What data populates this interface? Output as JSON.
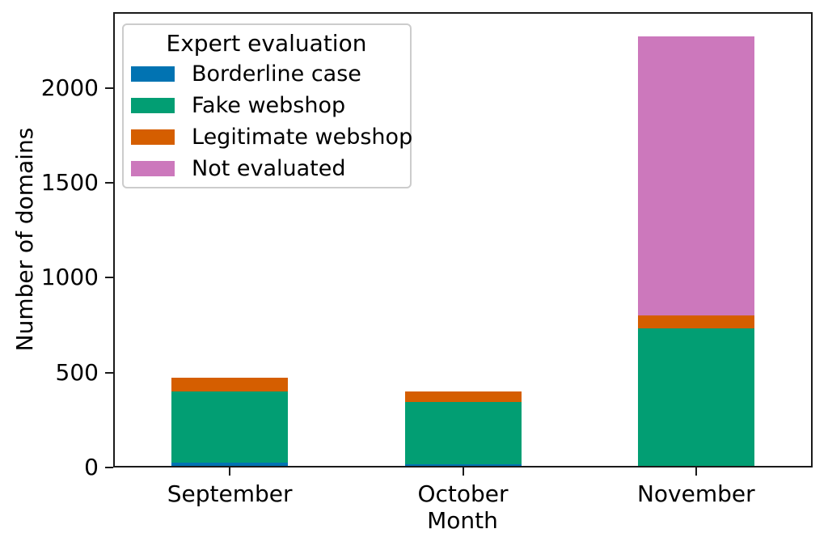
{
  "chart_data": {
    "type": "bar",
    "stacked": true,
    "title": "",
    "xlabel": "Month",
    "ylabel": "Number of domains",
    "categories": [
      "September",
      "October",
      "November"
    ],
    "series": [
      {
        "name": "Borderline case",
        "color": "#0173b2",
        "values": [
          25,
          15,
          0
        ]
      },
      {
        "name": "Fake webshop",
        "color": "#029e73",
        "values": [
          375,
          330,
          735
        ]
      },
      {
        "name": "Legitimate webshop",
        "color": "#d55e00",
        "values": [
          75,
          55,
          65
        ]
      },
      {
        "name": "Not evaluated",
        "color": "#cc78bc",
        "values": [
          0,
          0,
          1470
        ]
      }
    ],
    "totals": [
      475,
      400,
      2270
    ],
    "legend": {
      "title": "Expert evaluation",
      "position": "upper left"
    },
    "ylim": [
      0,
      2400
    ],
    "yticks": [
      0,
      500,
      1000,
      1500,
      2000
    ],
    "grid": false,
    "axis_color": "#1a1a1a",
    "background_color": "#ffffff"
  }
}
